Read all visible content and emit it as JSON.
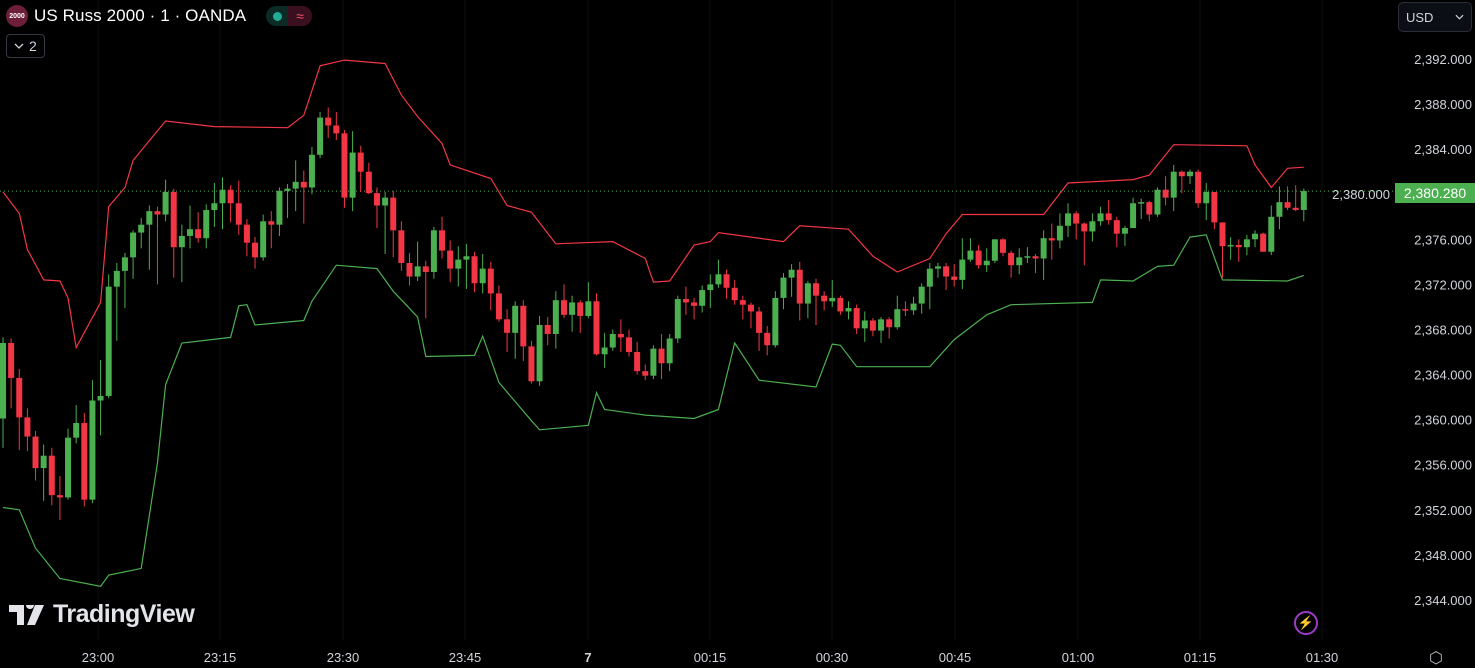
{
  "header": {
    "symbol_logo_text": "2000",
    "title": "US Russ 2000 · 1 · OANDA",
    "market_status_icon": "market-open-dot",
    "delay_icon": "approx-icon",
    "delay_glyph": "≈",
    "indicators_collapse_count": "2"
  },
  "currency": {
    "selected": "USD"
  },
  "branding": {
    "logo_text": "TradingView"
  },
  "colors": {
    "up": "#4caf50",
    "down": "#f23645",
    "upper_band": "#f23645",
    "lower_band": "#4caf50",
    "background": "#000000",
    "axis_text": "#d1d4dc"
  },
  "last_price": "2,380.280",
  "chart_data": {
    "type": "candlestick",
    "y_ticks": [
      "2,392.000",
      "2,388.000",
      "2,384.000",
      "2,380.000",
      "2,376.000",
      "2,372.000",
      "2,368.000",
      "2,364.000",
      "2,360.000",
      "2,356.000",
      "2,352.000",
      "2,348.000",
      "2,344.000"
    ],
    "y_tick_values": [
      2392,
      2388,
      2384,
      2380,
      2376,
      2372,
      2368,
      2364,
      2360,
      2356,
      2352,
      2348,
      2344
    ],
    "x_ticks": [
      "23:00",
      "23:15",
      "23:30",
      "23:45",
      "7",
      "00:15",
      "00:30",
      "00:45",
      "01:00",
      "01:15",
      "01:30"
    ],
    "ylim": [
      2341.6,
      2397.2
    ],
    "grid": "vertical faint",
    "candles_ohlc": [
      [
        2360.1,
        2367.3,
        2357.5,
        2366.8
      ],
      [
        2366.8,
        2367.2,
        2361.0,
        2363.7
      ],
      [
        2363.7,
        2364.5,
        2357.3,
        2360.2
      ],
      [
        2360.2,
        2361.0,
        2357.2,
        2358.5
      ],
      [
        2358.5,
        2359.0,
        2354.6,
        2355.7
      ],
      [
        2355.7,
        2357.8,
        2352.8,
        2356.8
      ],
      [
        2356.8,
        2357.5,
        2352.4,
        2353.3
      ],
      [
        2353.3,
        2355.0,
        2351.1,
        2353.1
      ],
      [
        2353.1,
        2359.2,
        2352.9,
        2358.4
      ],
      [
        2358.4,
        2361.3,
        2357.9,
        2359.7
      ],
      [
        2359.7,
        2360.6,
        2352.3,
        2352.9
      ],
      [
        2352.9,
        2363.5,
        2352.6,
        2361.7
      ],
      [
        2361.7,
        2365.3,
        2358.6,
        2362.1
      ],
      [
        2362.1,
        2372.9,
        2361.9,
        2371.8
      ],
      [
        2371.8,
        2373.9,
        2367.0,
        2373.2
      ],
      [
        2373.2,
        2374.8,
        2369.9,
        2374.4
      ],
      [
        2374.4,
        2376.8,
        2372.5,
        2376.6
      ],
      [
        2376.6,
        2377.9,
        2375.2,
        2377.3
      ],
      [
        2377.3,
        2379.0,
        2373.3,
        2378.5
      ],
      [
        2378.5,
        2378.9,
        2372.0,
        2378.2
      ],
      [
        2378.2,
        2381.3,
        2377.6,
        2380.2
      ],
      [
        2380.2,
        2380.5,
        2372.6,
        2375.3
      ],
      [
        2375.3,
        2377.3,
        2372.2,
        2376.3
      ],
      [
        2376.3,
        2379.0,
        2375.2,
        2376.9
      ],
      [
        2376.9,
        2378.4,
        2375.7,
        2376.1
      ],
      [
        2376.1,
        2379.1,
        2375.2,
        2378.6
      ],
      [
        2378.6,
        2381.0,
        2377.1,
        2379.2
      ],
      [
        2379.2,
        2381.5,
        2376.9,
        2380.4
      ],
      [
        2380.4,
        2380.8,
        2377.5,
        2379.2
      ],
      [
        2379.2,
        2381.2,
        2376.4,
        2377.3
      ],
      [
        2377.3,
        2377.8,
        2374.5,
        2375.7
      ],
      [
        2375.7,
        2376.2,
        2373.4,
        2374.4
      ],
      [
        2374.4,
        2378.2,
        2374.1,
        2377.6
      ],
      [
        2377.6,
        2378.5,
        2375.2,
        2377.3
      ],
      [
        2377.3,
        2380.6,
        2376.3,
        2380.3
      ],
      [
        2380.3,
        2380.9,
        2377.9,
        2380.5
      ],
      [
        2380.5,
        2383.0,
        2378.5,
        2381.1
      ],
      [
        2381.1,
        2382.1,
        2377.4,
        2380.6
      ],
      [
        2380.6,
        2384.2,
        2380.0,
        2383.5
      ],
      [
        2383.5,
        2387.3,
        2383.2,
        2386.8
      ],
      [
        2386.8,
        2387.7,
        2385.0,
        2386.1
      ],
      [
        2386.1,
        2387.3,
        2384.8,
        2385.4
      ],
      [
        2385.4,
        2385.7,
        2378.8,
        2379.7
      ],
      [
        2379.7,
        2385.6,
        2378.5,
        2383.7
      ],
      [
        2383.7,
        2384.3,
        2380.2,
        2382.0
      ],
      [
        2382.0,
        2382.8,
        2380.0,
        2380.1
      ],
      [
        2380.1,
        2380.6,
        2377.0,
        2379.0
      ],
      [
        2379.0,
        2380.2,
        2374.7,
        2379.7
      ],
      [
        2379.7,
        2380.3,
        2374.4,
        2376.8
      ],
      [
        2376.8,
        2377.6,
        2373.2,
        2373.9
      ],
      [
        2373.9,
        2374.8,
        2371.9,
        2372.7
      ],
      [
        2372.7,
        2375.8,
        2372.3,
        2373.6
      ],
      [
        2373.6,
        2374.1,
        2369.0,
        2373.1
      ],
      [
        2373.1,
        2377.1,
        2372.5,
        2376.8
      ],
      [
        2376.8,
        2378.0,
        2374.3,
        2375.0
      ],
      [
        2375.0,
        2375.9,
        2372.2,
        2373.4
      ],
      [
        2373.4,
        2375.4,
        2371.8,
        2374.2
      ],
      [
        2374.2,
        2375.6,
        2371.6,
        2374.5
      ],
      [
        2374.5,
        2374.9,
        2371.3,
        2372.1
      ],
      [
        2372.1,
        2374.7,
        2371.2,
        2373.4
      ],
      [
        2373.4,
        2374.0,
        2369.7,
        2371.2
      ],
      [
        2371.2,
        2371.9,
        2368.7,
        2368.9
      ],
      [
        2368.9,
        2369.8,
        2366.0,
        2367.7
      ],
      [
        2367.7,
        2370.5,
        2365.4,
        2370.1
      ],
      [
        2370.1,
        2370.6,
        2365.2,
        2366.5
      ],
      [
        2366.5,
        2367.0,
        2363.2,
        2363.4
      ],
      [
        2363.4,
        2369.2,
        2363.0,
        2368.4
      ],
      [
        2368.4,
        2369.1,
        2366.6,
        2367.6
      ],
      [
        2367.6,
        2371.4,
        2366.3,
        2370.6
      ],
      [
        2370.6,
        2372.0,
        2369.0,
        2369.3
      ],
      [
        2369.3,
        2371.0,
        2367.8,
        2370.4
      ],
      [
        2370.4,
        2370.6,
        2367.7,
        2369.2
      ],
      [
        2369.2,
        2372.2,
        2369.0,
        2370.5
      ],
      [
        2370.5,
        2371.2,
        2365.7,
        2365.8
      ],
      [
        2365.8,
        2367.7,
        2364.6,
        2366.4
      ],
      [
        2366.4,
        2368.0,
        2366.1,
        2367.6
      ],
      [
        2367.6,
        2368.9,
        2366.0,
        2367.3
      ],
      [
        2367.3,
        2368.0,
        2365.6,
        2366.0
      ],
      [
        2366.0,
        2366.9,
        2364.0,
        2364.3
      ],
      [
        2364.3,
        2364.9,
        2363.5,
        2363.9
      ],
      [
        2363.9,
        2366.6,
        2363.6,
        2366.3
      ],
      [
        2366.3,
        2367.6,
        2363.6,
        2365.0
      ],
      [
        2365.0,
        2367.6,
        2364.3,
        2367.2
      ],
      [
        2367.2,
        2371.0,
        2366.8,
        2370.7
      ],
      [
        2370.7,
        2371.8,
        2369.3,
        2370.4
      ],
      [
        2370.4,
        2370.8,
        2368.9,
        2370.1
      ],
      [
        2370.1,
        2371.9,
        2369.5,
        2371.5
      ],
      [
        2371.5,
        2372.9,
        2369.9,
        2372.0
      ],
      [
        2372.0,
        2374.2,
        2371.7,
        2372.9
      ],
      [
        2372.9,
        2373.3,
        2370.7,
        2371.7
      ],
      [
        2371.7,
        2372.4,
        2370.2,
        2370.6
      ],
      [
        2370.6,
        2371.0,
        2368.9,
        2370.2
      ],
      [
        2370.2,
        2370.4,
        2368.1,
        2369.6
      ],
      [
        2369.6,
        2370.0,
        2366.1,
        2367.7
      ],
      [
        2367.7,
        2368.3,
        2365.7,
        2366.6
      ],
      [
        2366.6,
        2371.4,
        2366.4,
        2370.8
      ],
      [
        2370.8,
        2373.0,
        2369.8,
        2372.6
      ],
      [
        2372.6,
        2373.8,
        2370.9,
        2373.3
      ],
      [
        2373.3,
        2374.0,
        2368.8,
        2370.3
      ],
      [
        2370.3,
        2372.3,
        2369.0,
        2372.1
      ],
      [
        2372.1,
        2372.5,
        2368.4,
        2371.0
      ],
      [
        2371.0,
        2371.4,
        2369.7,
        2370.5
      ],
      [
        2370.5,
        2372.4,
        2370.0,
        2370.8
      ],
      [
        2370.8,
        2371.0,
        2369.3,
        2369.6
      ],
      [
        2369.6,
        2370.5,
        2368.9,
        2369.9
      ],
      [
        2369.9,
        2370.2,
        2367.6,
        2368.1
      ],
      [
        2368.1,
        2369.6,
        2366.9,
        2368.8
      ],
      [
        2368.8,
        2369.0,
        2367.4,
        2367.9
      ],
      [
        2367.9,
        2369.1,
        2366.8,
        2368.9
      ],
      [
        2368.9,
        2369.1,
        2367.2,
        2368.2
      ],
      [
        2368.2,
        2371.0,
        2368.0,
        2369.8
      ],
      [
        2369.8,
        2370.5,
        2369.2,
        2369.7
      ],
      [
        2369.7,
        2370.9,
        2369.3,
        2370.3
      ],
      [
        2370.3,
        2372.1,
        2369.4,
        2371.8
      ],
      [
        2371.8,
        2373.9,
        2369.8,
        2373.4
      ],
      [
        2373.4,
        2373.9,
        2372.6,
        2373.6
      ],
      [
        2373.6,
        2373.9,
        2371.5,
        2372.7
      ],
      [
        2372.7,
        2373.8,
        2371.8,
        2372.4
      ],
      [
        2372.4,
        2376.1,
        2371.6,
        2374.2
      ],
      [
        2374.2,
        2376.1,
        2374.0,
        2375.0
      ],
      [
        2375.0,
        2375.5,
        2373.4,
        2373.7
      ],
      [
        2373.7,
        2375.2,
        2373.1,
        2374.1
      ],
      [
        2374.1,
        2376.0,
        2373.9,
        2376.0
      ],
      [
        2376.0,
        2376.1,
        2374.5,
        2374.8
      ],
      [
        2374.8,
        2375.0,
        2372.6,
        2373.7
      ],
      [
        2373.7,
        2375.2,
        2372.9,
        2374.4
      ],
      [
        2374.4,
        2375.3,
        2373.9,
        2374.5
      ],
      [
        2374.5,
        2374.7,
        2373.0,
        2374.3
      ],
      [
        2374.3,
        2376.8,
        2372.4,
        2376.1
      ],
      [
        2376.1,
        2377.4,
        2374.2,
        2375.9
      ],
      [
        2375.9,
        2378.3,
        2375.2,
        2377.2
      ],
      [
        2377.2,
        2379.2,
        2376.2,
        2378.3
      ],
      [
        2378.3,
        2378.5,
        2376.0,
        2377.4
      ],
      [
        2377.4,
        2377.5,
        2373.7,
        2376.7
      ],
      [
        2376.7,
        2378.3,
        2375.8,
        2377.6
      ],
      [
        2377.6,
        2378.9,
        2377.2,
        2378.3
      ],
      [
        2378.3,
        2379.5,
        2377.3,
        2377.7
      ],
      [
        2377.7,
        2378.0,
        2375.3,
        2376.5
      ],
      [
        2376.5,
        2377.2,
        2375.4,
        2377.0
      ],
      [
        2377.0,
        2379.7,
        2377.0,
        2379.2
      ],
      [
        2379.2,
        2379.6,
        2377.8,
        2379.3
      ],
      [
        2379.3,
        2379.4,
        2377.6,
        2378.2
      ],
      [
        2378.2,
        2380.6,
        2378.0,
        2380.4
      ],
      [
        2380.4,
        2381.6,
        2379.0,
        2379.7
      ],
      [
        2379.7,
        2382.6,
        2378.5,
        2382.0
      ],
      [
        2382.0,
        2382.1,
        2380.1,
        2381.6
      ],
      [
        2381.6,
        2382.2,
        2380.9,
        2382.0
      ],
      [
        2382.0,
        2382.2,
        2378.8,
        2379.2
      ],
      [
        2379.2,
        2381.0,
        2377.7,
        2380.2
      ],
      [
        2380.2,
        2380.2,
        2376.9,
        2377.5
      ],
      [
        2377.5,
        2377.5,
        2372.6,
        2375.4
      ],
      [
        2375.4,
        2376.2,
        2374.2,
        2375.5
      ],
      [
        2375.5,
        2376.0,
        2374.0,
        2375.3
      ],
      [
        2375.3,
        2376.4,
        2374.6,
        2376.0
      ],
      [
        2376.0,
        2376.8,
        2375.3,
        2376.5
      ],
      [
        2376.5,
        2376.6,
        2374.9,
        2374.9
      ],
      [
        2374.9,
        2379.0,
        2374.6,
        2378.0
      ],
      [
        2378.0,
        2380.7,
        2376.9,
        2379.3
      ],
      [
        2379.3,
        2380.7,
        2378.6,
        2378.8
      ],
      [
        2378.8,
        2380.8,
        2378.5,
        2378.6
      ],
      [
        2378.6,
        2380.5,
        2377.6,
        2380.28
      ]
    ],
    "upper_band": [
      [
        0,
        2380.2
      ],
      [
        2,
        2378.3
      ],
      [
        3,
        2375.1
      ],
      [
        5,
        2372.4
      ],
      [
        7,
        2372.3
      ],
      [
        8,
        2370.8
      ],
      [
        9,
        2366.4
      ],
      [
        12,
        2370.4
      ],
      [
        13,
        2378.9
      ],
      [
        15,
        2380.6
      ],
      [
        16,
        2383.0
      ],
      [
        20,
        2386.5
      ],
      [
        26,
        2386.0
      ],
      [
        35,
        2385.9
      ],
      [
        37,
        2387.0
      ],
      [
        39,
        2391.4
      ],
      [
        42,
        2391.9
      ],
      [
        47,
        2391.6
      ],
      [
        49,
        2388.8
      ],
      [
        51,
        2386.9
      ],
      [
        54,
        2384.5
      ],
      [
        55,
        2382.6
      ],
      [
        60,
        2381.4
      ],
      [
        62,
        2379.0
      ],
      [
        65,
        2378.4
      ],
      [
        68,
        2375.6
      ],
      [
        75,
        2375.8
      ],
      [
        79,
        2374.3
      ],
      [
        80,
        2372.2
      ],
      [
        82,
        2372.3
      ],
      [
        85,
        2375.5
      ],
      [
        87,
        2375.8
      ],
      [
        88,
        2376.6
      ],
      [
        96,
        2375.8
      ],
      [
        98,
        2377.2
      ],
      [
        104,
        2376.9
      ],
      [
        107,
        2374.5
      ],
      [
        110,
        2373.1
      ],
      [
        114,
        2374.3
      ],
      [
        116,
        2376.5
      ],
      [
        118,
        2378.2
      ],
      [
        128,
        2378.2
      ],
      [
        131,
        2381.0
      ],
      [
        139,
        2381.3
      ],
      [
        141,
        2381.7
      ],
      [
        144,
        2384.4
      ],
      [
        153,
        2384.3
      ],
      [
        154,
        2382.6
      ],
      [
        156,
        2380.6
      ],
      [
        158,
        2382.3
      ],
      [
        160,
        2382.4
      ]
    ],
    "lower_band": [
      [
        0,
        2352.2
      ],
      [
        2,
        2352.0
      ],
      [
        4,
        2348.6
      ],
      [
        7,
        2345.9
      ],
      [
        12,
        2345.2
      ],
      [
        13,
        2346.2
      ],
      [
        17,
        2346.8
      ],
      [
        19,
        2356.2
      ],
      [
        20,
        2363.1
      ],
      [
        22,
        2366.8
      ],
      [
        28,
        2367.3
      ],
      [
        29,
        2370.1
      ],
      [
        30,
        2370.2
      ],
      [
        31,
        2368.4
      ],
      [
        37,
        2368.8
      ],
      [
        38,
        2370.5
      ],
      [
        41,
        2373.7
      ],
      [
        46,
        2373.4
      ],
      [
        48,
        2371.4
      ],
      [
        51,
        2369.1
      ],
      [
        52,
        2365.6
      ],
      [
        58,
        2365.7
      ],
      [
        59,
        2367.4
      ],
      [
        61,
        2363.3
      ],
      [
        65,
        2359.9
      ],
      [
        66,
        2359.1
      ],
      [
        72,
        2359.5
      ],
      [
        73,
        2362.4
      ],
      [
        74,
        2360.9
      ],
      [
        79,
        2360.4
      ],
      [
        85,
        2360.1
      ],
      [
        88,
        2360.9
      ],
      [
        90,
        2366.8
      ],
      [
        93,
        2363.5
      ],
      [
        100,
        2362.9
      ],
      [
        102,
        2366.7
      ],
      [
        103,
        2366.6
      ],
      [
        105,
        2364.7
      ],
      [
        114,
        2364.7
      ],
      [
        117,
        2367.1
      ],
      [
        121,
        2369.3
      ],
      [
        124,
        2370.2
      ],
      [
        134,
        2370.4
      ],
      [
        135,
        2372.4
      ],
      [
        139,
        2372.3
      ],
      [
        142,
        2373.6
      ],
      [
        144,
        2373.7
      ],
      [
        146,
        2376.2
      ],
      [
        148,
        2376.4
      ],
      [
        150,
        2372.4
      ],
      [
        158,
        2372.3
      ],
      [
        160,
        2372.8
      ]
    ]
  }
}
